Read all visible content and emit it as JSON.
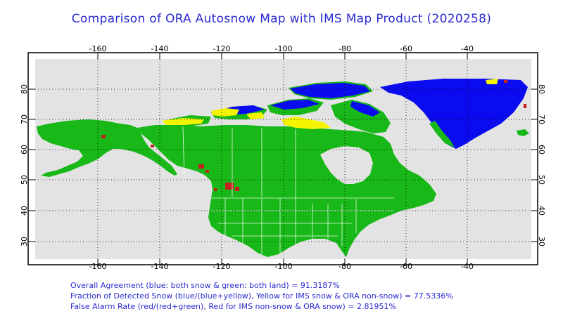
{
  "title": "Comparison of ORA Autosnow Map with IMS Map Product (2020258)",
  "axes": {
    "lon_labels": [
      "-160",
      "-140",
      "-120",
      "-100",
      "-80",
      "-60",
      "-40"
    ],
    "lat_labels": [
      "30",
      "40",
      "50",
      "60",
      "70",
      "80"
    ]
  },
  "colors": {
    "ocean": "#e3e3e3",
    "land_agreement": "#17b817",
    "snow_agreement": "#0b0bf0",
    "ims_snow_ora_nosnow": "#f4f400",
    "ims_nosnow_ora_snow": "#c42020",
    "borders": "#ffffff",
    "text": "#2a2ad0"
  },
  "stats": {
    "line1": "Overall Agreement (blue: both snow & green: both land) =  91.3187%",
    "line2": "Fraction of Detected Snow (blue/(blue+yellow), Yellow for IMS snow & ORA non-snow) = 77.5336%",
    "line3": "False Alarm Rate (red/(red+green), Red for IMS non-snow & ORA snow)  =  2.81951%"
  }
}
